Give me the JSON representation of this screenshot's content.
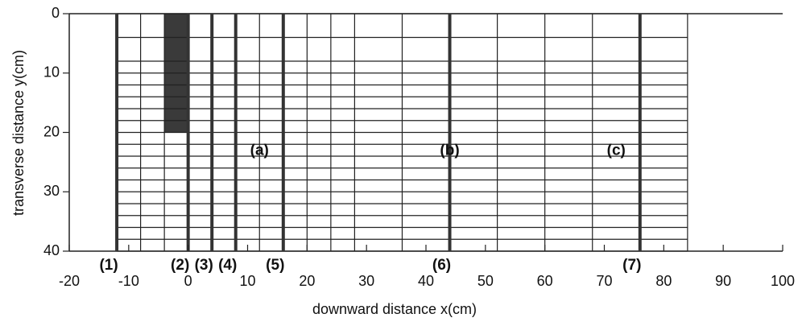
{
  "chart_data": {
    "type": "mesh",
    "xlabel": "downward distance x(cm)",
    "ylabel": "transverse distance y(cm)",
    "xlim": [
      -20,
      100
    ],
    "ylim": [
      0,
      40
    ],
    "y_inverted": true,
    "xticks": [
      -20,
      -10,
      0,
      10,
      20,
      30,
      40,
      50,
      60,
      70,
      80,
      90,
      100
    ],
    "yticks": [
      0,
      10,
      20,
      30,
      40
    ],
    "mesh_x": [
      -12,
      -8,
      -4,
      0,
      4,
      8,
      12,
      16,
      20,
      24,
      28,
      36,
      44,
      52,
      60,
      68,
      76,
      84
    ],
    "mesh_y": [
      0,
      4,
      8,
      10,
      12,
      14,
      16,
      18,
      20,
      22,
      24,
      26,
      28,
      30,
      32,
      34,
      36,
      38,
      40
    ],
    "block": {
      "x": [
        -4,
        0
      ],
      "y": [
        0,
        20
      ],
      "color": "#3a3a3a"
    },
    "sections": [
      {
        "label": "(1)",
        "x": -12
      },
      {
        "label": "(2)",
        "x": 0
      },
      {
        "label": "(3)",
        "x": 4
      },
      {
        "label": "(4)",
        "x": 8
      },
      {
        "label": "(5)",
        "x": 16
      },
      {
        "label": "(6)",
        "x": 44
      },
      {
        "label": "(7)",
        "x": 76
      }
    ],
    "regions": [
      {
        "label": "(a)",
        "x": 12,
        "y": 22
      },
      {
        "label": "(b)",
        "x": 44,
        "y": 22
      },
      {
        "label": "(c)",
        "x": 72,
        "y": 22
      }
    ],
    "line_color": "#222222",
    "section_color": "#333333"
  }
}
